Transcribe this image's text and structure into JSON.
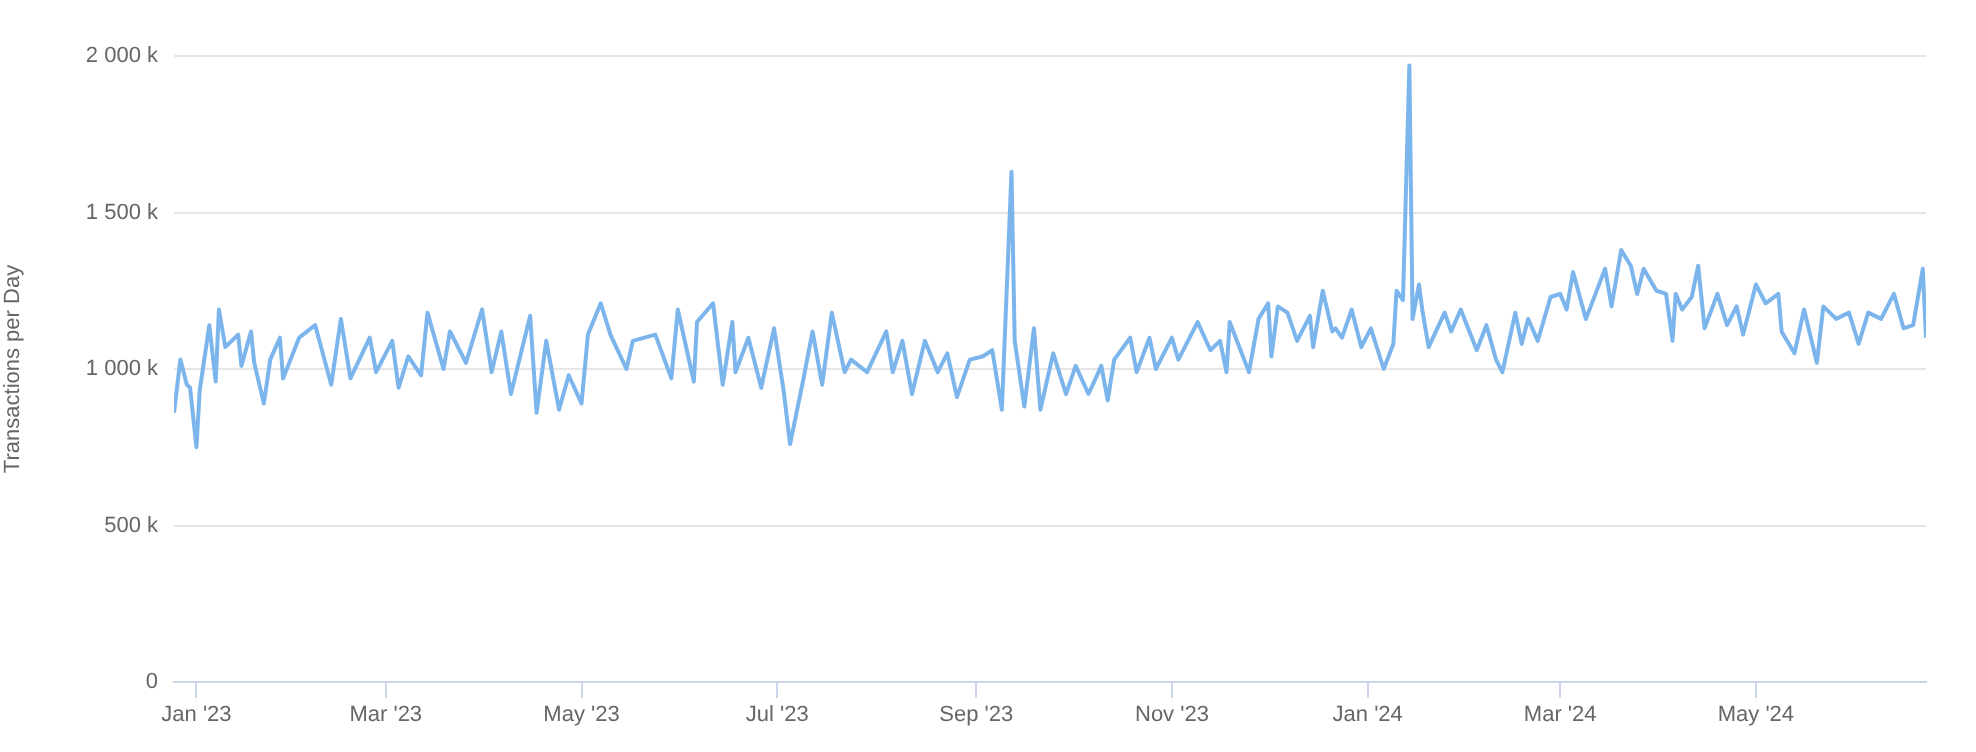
{
  "chart_data": {
    "type": "line",
    "ylabel": "Transactions per Day",
    "x": [
      "2022-12-25",
      "2022-12-27",
      "2022-12-29",
      "2022-12-30",
      "2023-01-01",
      "2023-01-02",
      "2023-01-05",
      "2023-01-07",
      "2023-01-08",
      "2023-01-10",
      "2023-01-14",
      "2023-01-15",
      "2023-01-18",
      "2023-01-19",
      "2023-01-22",
      "2023-01-24",
      "2023-01-27",
      "2023-01-28",
      "2023-02-02",
      "2023-02-07",
      "2023-02-12",
      "2023-02-15",
      "2023-02-18",
      "2023-02-24",
      "2023-02-26",
      "2023-03-03",
      "2023-03-05",
      "2023-03-08",
      "2023-03-12",
      "2023-03-14",
      "2023-03-19",
      "2023-03-21",
      "2023-03-26",
      "2023-03-31",
      "2023-04-03",
      "2023-04-06",
      "2023-04-09",
      "2023-04-15",
      "2023-04-17",
      "2023-04-20",
      "2023-04-24",
      "2023-04-27",
      "2023-05-01",
      "2023-05-03",
      "2023-05-07",
      "2023-05-10",
      "2023-05-15",
      "2023-05-17",
      "2023-05-24",
      "2023-05-29",
      "2023-05-31",
      "2023-06-05",
      "2023-06-06",
      "2023-06-11",
      "2023-06-14",
      "2023-06-17",
      "2023-06-18",
      "2023-06-22",
      "2023-06-26",
      "2023-06-30",
      "2023-07-03",
      "2023-07-05",
      "2023-07-09",
      "2023-07-12",
      "2023-07-15",
      "2023-07-18",
      "2023-07-22",
      "2023-07-24",
      "2023-07-29",
      "2023-08-04",
      "2023-08-06",
      "2023-08-09",
      "2023-08-12",
      "2023-08-16",
      "2023-08-20",
      "2023-08-23",
      "2023-08-26",
      "2023-08-30",
      "2023-09-03",
      "2023-09-06",
      "2023-09-09",
      "2023-09-12",
      "2023-09-13",
      "2023-09-16",
      "2023-09-19",
      "2023-09-21",
      "2023-09-25",
      "2023-09-29",
      "2023-10-02",
      "2023-10-06",
      "2023-10-10",
      "2023-10-12",
      "2023-10-14",
      "2023-10-19",
      "2023-10-21",
      "2023-10-25",
      "2023-10-27",
      "2023-11-01",
      "2023-11-03",
      "2023-11-09",
      "2023-11-13",
      "2023-11-16",
      "2023-11-18",
      "2023-11-19",
      "2023-11-25",
      "2023-11-28",
      "2023-12-01",
      "2023-12-02",
      "2023-12-04",
      "2023-12-07",
      "2023-12-10",
      "2023-12-14",
      "2023-12-15",
      "2023-12-18",
      "2023-12-21",
      "2023-12-22",
      "2023-12-24",
      "2023-12-27",
      "2023-12-30",
      "2024-01-02",
      "2024-01-06",
      "2024-01-09",
      "2024-01-10",
      "2024-01-12",
      "2024-01-14",
      "2024-01-15",
      "2024-01-17",
      "2024-01-18",
      "2024-01-20",
      "2024-01-25",
      "2024-01-27",
      "2024-01-30",
      "2024-02-04",
      "2024-02-07",
      "2024-02-10",
      "2024-02-12",
      "2024-02-16",
      "2024-02-18",
      "2024-02-20",
      "2024-02-23",
      "2024-02-27",
      "2024-03-01",
      "2024-03-03",
      "2024-03-05",
      "2024-03-09",
      "2024-03-12",
      "2024-03-15",
      "2024-03-17",
      "2024-03-20",
      "2024-03-23",
      "2024-03-25",
      "2024-03-27",
      "2024-03-31",
      "2024-04-03",
      "2024-04-05",
      "2024-04-06",
      "2024-04-08",
      "2024-04-11",
      "2024-04-13",
      "2024-04-15",
      "2024-04-19",
      "2024-04-22",
      "2024-04-25",
      "2024-04-27",
      "2024-05-01",
      "2024-05-04",
      "2024-05-08",
      "2024-05-09",
      "2024-05-13",
      "2024-05-16",
      "2024-05-20",
      "2024-05-22",
      "2024-05-26",
      "2024-05-30",
      "2024-06-02",
      "2024-06-05",
      "2024-06-09",
      "2024-06-13",
      "2024-06-16",
      "2024-06-19",
      "2024-06-22",
      "2024-06-23"
    ],
    "values": [
      860,
      1030,
      950,
      940,
      750,
      930,
      1140,
      960,
      1190,
      1070,
      1110,
      1010,
      1120,
      1020,
      890,
      1030,
      1100,
      970,
      1100,
      1140,
      950,
      1160,
      970,
      1100,
      990,
      1090,
      940,
      1040,
      980,
      1180,
      1000,
      1120,
      1020,
      1190,
      990,
      1120,
      920,
      1170,
      860,
      1090,
      870,
      980,
      890,
      1110,
      1210,
      1110,
      1000,
      1090,
      1110,
      970,
      1190,
      960,
      1150,
      1210,
      950,
      1150,
      990,
      1100,
      940,
      1130,
      930,
      760,
      960,
      1120,
      950,
      1180,
      990,
      1030,
      990,
      1120,
      990,
      1090,
      920,
      1090,
      990,
      1050,
      910,
      1030,
      1040,
      1060,
      870,
      1630,
      1090,
      880,
      1130,
      870,
      1050,
      920,
      1010,
      920,
      1010,
      900,
      1030,
      1100,
      990,
      1100,
      1000,
      1100,
      1030,
      1150,
      1060,
      1090,
      990,
      1150,
      990,
      1160,
      1210,
      1040,
      1200,
      1180,
      1090,
      1170,
      1070,
      1250,
      1120,
      1130,
      1100,
      1190,
      1070,
      1130,
      1000,
      1080,
      1250,
      1220,
      1970,
      1160,
      1270,
      1190,
      1070,
      1180,
      1120,
      1190,
      1060,
      1140,
      1030,
      990,
      1180,
      1080,
      1160,
      1090,
      1230,
      1240,
      1190,
      1310,
      1160,
      1240,
      1320,
      1200,
      1380,
      1330,
      1240,
      1320,
      1250,
      1240,
      1090,
      1240,
      1190,
      1230,
      1330,
      1130,
      1240,
      1140,
      1200,
      1110,
      1270,
      1210,
      1240,
      1120,
      1050,
      1190,
      1020,
      1200,
      1160,
      1180,
      1080,
      1180,
      1160,
      1240,
      1130,
      1140,
      1320,
      1100
    ],
    "color": "#7cb5ec",
    "xlim": [
      "2022-12-25",
      "2024-06-23"
    ],
    "xticks": [
      {
        "value": "2023-01-01",
        "label": "Jan '23"
      },
      {
        "value": "2023-03-01",
        "label": "Mar '23"
      },
      {
        "value": "2023-05-01",
        "label": "May '23"
      },
      {
        "value": "2023-07-01",
        "label": "Jul '23"
      },
      {
        "value": "2023-09-01",
        "label": "Sep '23"
      },
      {
        "value": "2023-11-01",
        "label": "Nov '23"
      },
      {
        "value": "2024-01-01",
        "label": "Jan '24"
      },
      {
        "value": "2024-03-01",
        "label": "Mar '24"
      },
      {
        "value": "2024-05-01",
        "label": "May '24"
      }
    ],
    "ylim": [
      0,
      2000
    ],
    "yticks": [
      0,
      {
        "value": 500,
        "label": "500 k"
      },
      {
        "value": 1000,
        "label": "1 000 k"
      },
      {
        "value": 1500,
        "label": "1 500 k"
      },
      {
        "value": 2000,
        "label": "2 000 k"
      }
    ],
    "grid": "y",
    "marker": "none"
  }
}
